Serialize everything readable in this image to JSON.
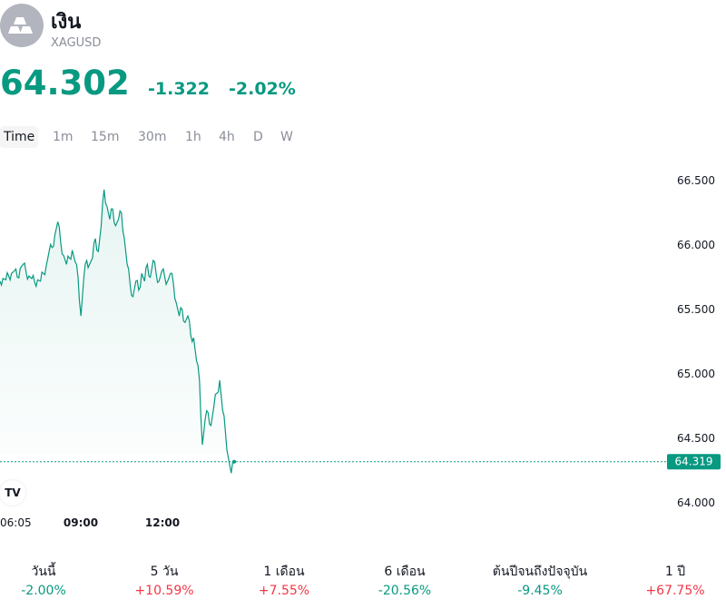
{
  "asset": {
    "name": "เงิน",
    "symbol": "XAGUSD",
    "logo_icon": "silver-bars-icon"
  },
  "quote": {
    "price": "64.302",
    "change": "-1.322",
    "change_pct": "-2.02%",
    "color": "#089981"
  },
  "timeframes": [
    "Time",
    "1m",
    "15m",
    "30m",
    "1h",
    "4h",
    "D",
    "W"
  ],
  "active_timeframe": "Time",
  "chart_data": {
    "type": "area",
    "y_ticks": [
      "66.500",
      "66.000",
      "65.500",
      "65.000",
      "64.500",
      "64.000"
    ],
    "x_ticks": [
      "06:05",
      "09:00",
      "12:00"
    ],
    "ylim": [
      64.0,
      66.5
    ],
    "last_price_label": "64.319",
    "last_price": 64.319,
    "line_color": "#089981",
    "series": [
      {
        "values": [
          65.72,
          65.74,
          65.73,
          65.76,
          65.78,
          65.8,
          65.75,
          65.82,
          65.85,
          65.79,
          65.76,
          65.74,
          65.71,
          65.73,
          65.72,
          65.78,
          65.84,
          65.95,
          65.98,
          66.08,
          66.18,
          66.02,
          65.92,
          65.85,
          65.9,
          65.96,
          65.87,
          65.75,
          65.45,
          65.75,
          65.88,
          65.85,
          65.9,
          66.05,
          65.95,
          66.15,
          66.43,
          66.3,
          66.2,
          66.28,
          66.15,
          66.2,
          66.25,
          66.05,
          65.85,
          65.7,
          65.6,
          65.72,
          65.65,
          65.78,
          65.72,
          65.85,
          65.75,
          65.88,
          65.78,
          65.72,
          65.8,
          65.75,
          65.72,
          65.78,
          65.7,
          65.55,
          65.45,
          65.5,
          65.4,
          65.45,
          65.3,
          65.28,
          65.1,
          64.95,
          64.45,
          64.65,
          64.7,
          64.6,
          64.75,
          64.85,
          64.95,
          64.72,
          64.55,
          64.35,
          64.23,
          64.32
        ]
      }
    ]
  },
  "performance": [
    {
      "label": "วันนี้",
      "value": "-2.00%",
      "dir": "neg"
    },
    {
      "label": "5 วัน",
      "value": "+10.59%",
      "dir": "pos"
    },
    {
      "label": "1 เดือน",
      "value": "+7.55%",
      "dir": "pos"
    },
    {
      "label": "6 เดือน",
      "value": "-20.56%",
      "dir": "neg"
    },
    {
      "label": "ต้นปีจนถึงปัจจุบัน",
      "value": "-9.45%",
      "dir": "neg"
    },
    {
      "label": "1 ปี",
      "value": "+67.75%",
      "dir": "pos"
    }
  ],
  "tv_logo_text": "TV"
}
